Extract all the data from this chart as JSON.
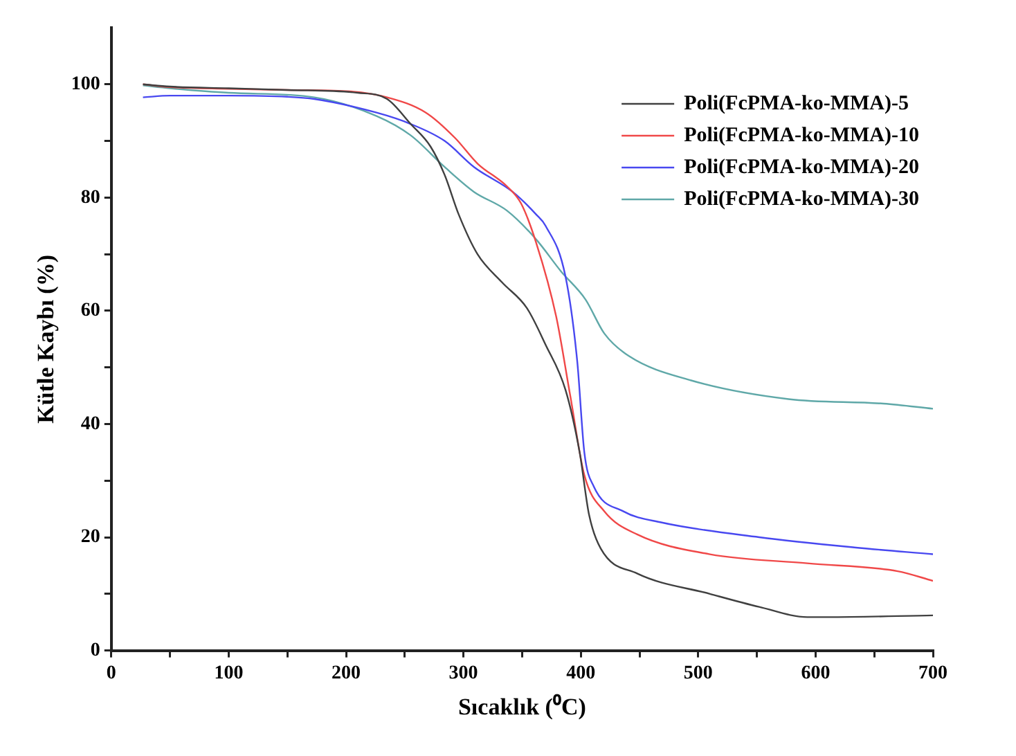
{
  "chart_data": {
    "type": "line",
    "xlabel": "Sıcaklık (⁰C)",
    "ylabel": "Kütle Kaybı (%)",
    "xlim": [
      0,
      700
    ],
    "ylim": [
      0,
      110
    ],
    "xticks": [
      0,
      {
        "value": 50,
        "label": null
      },
      100,
      {
        "value": 150,
        "label": null
      },
      200,
      {
        "value": 250,
        "label": null
      },
      300,
      {
        "value": 350,
        "label": null
      },
      400,
      {
        "value": 450,
        "label": null
      },
      500,
      {
        "value": 550,
        "label": null
      },
      600,
      {
        "value": 650,
        "label": null
      },
      700
    ],
    "yticks": [
      0,
      {
        "value": 10,
        "label": null
      },
      20,
      {
        "value": 30,
        "label": null
      },
      40,
      {
        "value": 50,
        "label": null
      },
      60,
      {
        "value": 70,
        "label": null
      },
      80,
      {
        "value": 90,
        "label": null
      },
      100
    ],
    "grid": false,
    "legend": "top right",
    "marker": "none",
    "line_style": "solid",
    "series": [
      {
        "name": "Poli(FcPMA-ko-MMA)-5",
        "color": "#404040",
        "x": [
          27,
          50,
          100,
          150,
          210,
          235,
          255,
          272,
          284,
          296,
          312,
          333,
          354,
          370,
          387,
          399,
          407,
          417,
          448,
          510,
          552,
          593,
          610,
          700
        ],
        "values": [
          100,
          99.6,
          99.3,
          99,
          98.5,
          97.4,
          93,
          89,
          84,
          77,
          70,
          65,
          60.5,
          54,
          46,
          35,
          24,
          18,
          13.6,
          10,
          7.7,
          5.9,
          5.9,
          6.2
        ]
      },
      {
        "name": "Poli(FcPMA-ko-MMA)-10",
        "color": "#f04848",
        "x": [
          27,
          50,
          100,
          150,
          200,
          235,
          268,
          293,
          312,
          337,
          349,
          362,
          379,
          391,
          403,
          420,
          448,
          510,
          593,
          670,
          700
        ],
        "values": [
          100,
          99.5,
          99.2,
          99,
          98.8,
          97.7,
          95,
          90.5,
          86,
          82,
          79,
          72,
          59,
          45,
          31,
          24.6,
          20.5,
          17,
          15.4,
          14,
          12.3
        ]
      },
      {
        "name": "Poli(FcPMA-ko-MMA)-20",
        "color": "#4848f0",
        "x": [
          27,
          50,
          100,
          150,
          173,
          226,
          255,
          284,
          309,
          342,
          362,
          370,
          387,
          397,
          403,
          411,
          436,
          469,
          552,
          633,
          700
        ],
        "values": [
          97.7,
          98,
          98,
          97.8,
          97.4,
          95,
          93,
          90,
          85.4,
          81,
          77,
          75,
          66,
          51,
          35,
          29,
          24.6,
          22.6,
          20,
          18.2,
          17
        ]
      },
      {
        "name": "Poli(FcPMA-ko-MMA)-30",
        "color": "#5fa8a8",
        "x": [
          27,
          50,
          100,
          173,
          226,
          255,
          284,
          309,
          337,
          362,
          383,
          404,
          420,
          441,
          494,
          577,
          658,
          700
        ],
        "values": [
          99.8,
          99.3,
          98.5,
          97.7,
          94.4,
          91,
          85.4,
          81,
          77.7,
          72.6,
          67,
          62,
          56,
          52,
          47.7,
          44.4,
          43.6,
          42.7
        ]
      }
    ]
  }
}
